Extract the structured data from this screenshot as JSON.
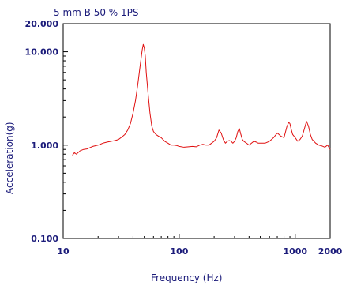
{
  "colors": {
    "text": "#1b1b7a",
    "axis": "#000000",
    "series": "#e01010",
    "background": "#ffffff"
  },
  "chart_data": {
    "type": "line",
    "title": "5 mm B 50 % 1PS",
    "xlabel": "Frequency (Hz)",
    "ylabel": "Acceleration(g)",
    "x_scale": "log",
    "y_scale": "log",
    "xlim": [
      10,
      2000
    ],
    "ylim": [
      0.1,
      20
    ],
    "grid": false,
    "legend": "none",
    "x_ticks": [
      {
        "value": 10,
        "label": "10"
      },
      {
        "value": 100,
        "label": "100"
      },
      {
        "value": 1000,
        "label": "1000"
      },
      {
        "value": 2000,
        "label": "2000"
      }
    ],
    "y_ticks": [
      {
        "value": 0.1,
        "label": "0.100"
      },
      {
        "value": 1,
        "label": "1.000"
      },
      {
        "value": 10,
        "label": "10.000"
      },
      {
        "value": 20,
        "label": "20.000"
      }
    ],
    "series": [
      {
        "x": [
          12,
          12.5,
          13,
          14,
          15,
          16,
          17,
          18,
          20,
          22,
          24,
          26,
          28,
          30,
          32,
          34,
          36,
          38,
          40,
          42,
          44,
          46,
          48,
          49,
          50,
          51,
          52,
          54,
          56,
          58,
          60,
          63,
          66,
          70,
          75,
          80,
          85,
          90,
          95,
          100,
          110,
          120,
          130,
          140,
          150,
          160,
          170,
          180,
          190,
          200,
          210,
          220,
          230,
          240,
          250,
          260,
          270,
          280,
          290,
          300,
          310,
          320,
          330,
          340,
          350,
          360,
          380,
          400,
          420,
          440,
          460,
          480,
          500,
          550,
          600,
          650,
          700,
          750,
          800,
          850,
          880,
          900,
          920,
          950,
          1000,
          1050,
          1100,
          1150,
          1200,
          1250,
          1300,
          1350,
          1400,
          1450,
          1500,
          1600,
          1700,
          1800,
          1900,
          2000
        ],
        "y": [
          0.78,
          0.83,
          0.8,
          0.87,
          0.9,
          0.91,
          0.94,
          0.97,
          1.0,
          1.05,
          1.08,
          1.1,
          1.12,
          1.15,
          1.22,
          1.3,
          1.45,
          1.7,
          2.2,
          3.0,
          4.5,
          7.0,
          10.5,
          12.0,
          11.0,
          9.0,
          6.0,
          3.5,
          2.2,
          1.6,
          1.4,
          1.3,
          1.25,
          1.2,
          1.1,
          1.05,
          1.0,
          1.0,
          0.99,
          0.97,
          0.95,
          0.96,
          0.97,
          0.96,
          1.0,
          1.02,
          1.0,
          1.0,
          1.05,
          1.1,
          1.2,
          1.45,
          1.35,
          1.15,
          1.05,
          1.1,
          1.12,
          1.1,
          1.05,
          1.1,
          1.2,
          1.4,
          1.5,
          1.3,
          1.15,
          1.1,
          1.05,
          1.0,
          1.05,
          1.1,
          1.08,
          1.05,
          1.05,
          1.05,
          1.1,
          1.2,
          1.35,
          1.25,
          1.2,
          1.6,
          1.75,
          1.7,
          1.5,
          1.3,
          1.2,
          1.1,
          1.15,
          1.25,
          1.5,
          1.8,
          1.6,
          1.3,
          1.15,
          1.1,
          1.05,
          1.0,
          0.98,
          0.95,
          1.0,
          0.9
        ]
      }
    ]
  }
}
